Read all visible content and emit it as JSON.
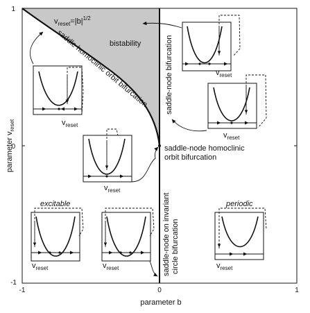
{
  "figure": {
    "axes": {
      "x_label": "parameter b",
      "y_label_main": "parameter v",
      "y_label_sub": "reset",
      "x_ticks": [
        "-1",
        "0",
        "1"
      ],
      "y_ticks": [
        "1",
        "0",
        "-1"
      ]
    },
    "labels": {
      "bistability": "bistability",
      "formula_v": "v",
      "formula_sub": "reset",
      "formula_rest": "=|b|",
      "formula_exp": "1/2",
      "saddle_homoclinic": "saddle homoclinic orbit bifurcation",
      "saddle_node_top": "saddle-node bifurcation",
      "sn_homoclinic_line1": "saddle-node homoclinic",
      "sn_homoclinic_line2": "orbit bifurcation",
      "sn_invariant_line1": "saddle-node on invariant",
      "sn_invariant_line2": "circle bifurcation",
      "excitable": "excitable",
      "periodic": "periodic"
    },
    "inset_caption": {
      "main": "v",
      "sub": "reset"
    },
    "colors": {
      "shaded_region": "#c8c8c8",
      "curve": "#111111"
    }
  }
}
